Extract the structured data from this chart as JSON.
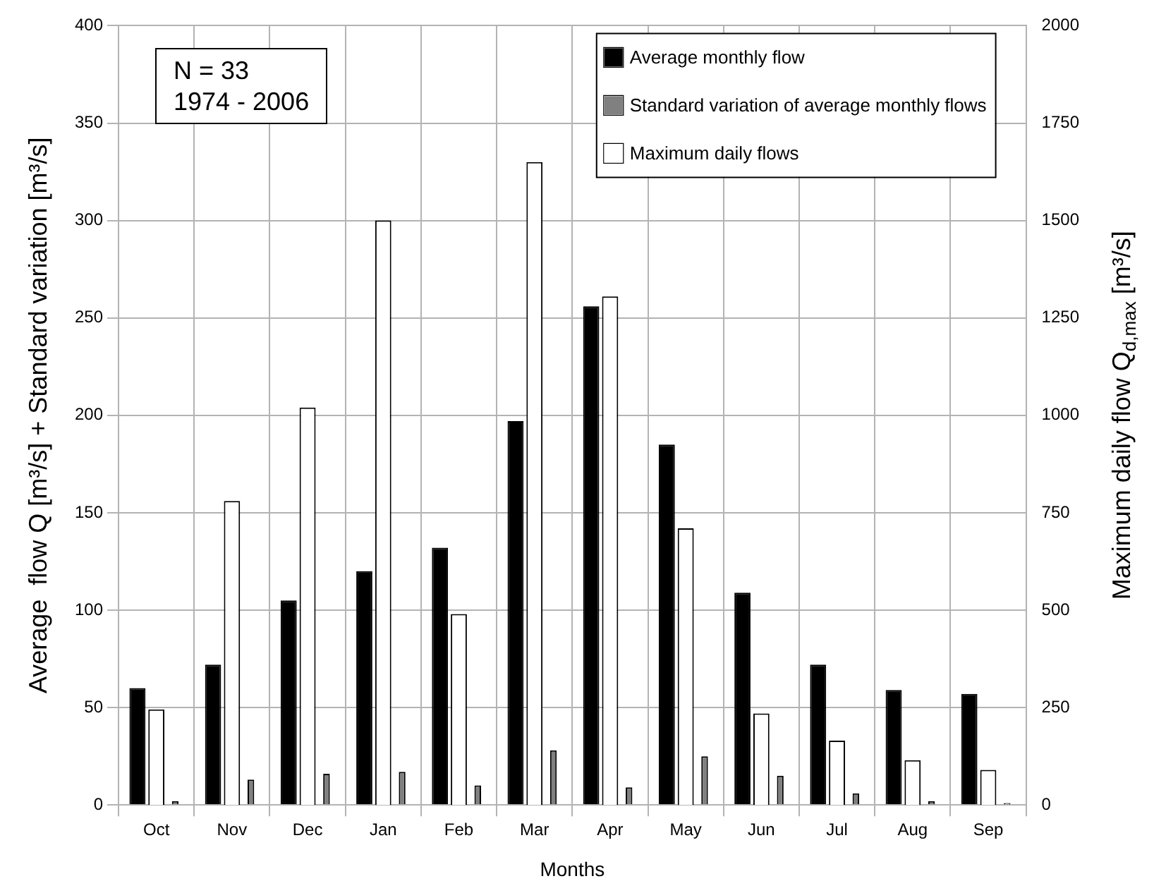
{
  "chart_data": {
    "type": "bar",
    "xlabel": "Months",
    "ylabel": "Average  flow Q [m³/s] + Standard variation [m³/s]",
    "y2label": "Maximum daily flow Q$_{d,max}$ [m³/s]",
    "categories": [
      "Oct",
      "Nov",
      "Dec",
      "Jan",
      "Feb",
      "Mar",
      "Apr",
      "May",
      "Jun",
      "Jul",
      "Aug",
      "Sep"
    ],
    "series": [
      {
        "name": "Average monthly flow",
        "color": "#000000",
        "values": [
          60,
          72,
          105,
          120,
          132,
          197,
          256,
          185,
          109,
          72,
          59,
          57
        ]
      },
      {
        "name": "Standard variation of average monthly flows",
        "color": "#808080",
        "values": [
          2,
          13,
          16,
          17,
          10,
          28,
          9,
          25,
          15,
          6,
          2,
          1
        ]
      },
      {
        "name": "Maximum daily flows",
        "color": "#ffffff",
        "axis": "y2",
        "values": [
          245,
          780,
          1020,
          1500,
          490,
          1650,
          1305,
          710,
          235,
          165,
          115,
          90
        ]
      }
    ],
    "ylim": [
      0,
      400
    ],
    "yticks": [
      0,
      50,
      100,
      150,
      200,
      250,
      300,
      350,
      400
    ],
    "y2lim": [
      0,
      2000
    ],
    "y2ticks": [
      0,
      250,
      500,
      750,
      1000,
      1250,
      1500,
      1750,
      2000
    ],
    "annotations": [
      "N = 33\n1974 - 2006"
    ],
    "grid": true,
    "legend": "top right"
  }
}
